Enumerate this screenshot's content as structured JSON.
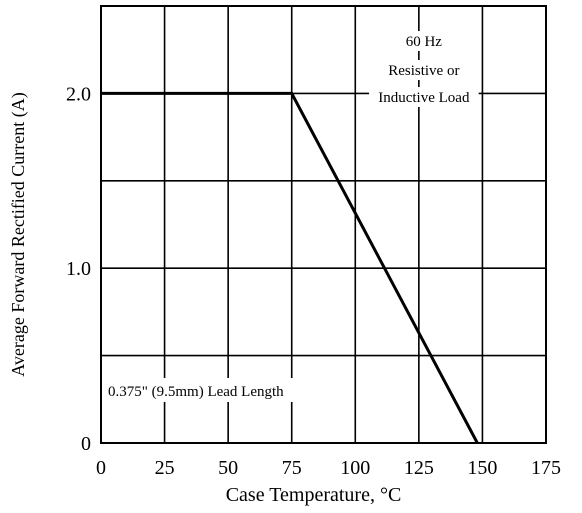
{
  "chart_data": {
    "type": "line",
    "title": "",
    "xlabel": "Case Temperature, °C",
    "ylabel": "Average Forward Rectified Current (A)",
    "xlim": [
      0,
      175
    ],
    "ylim": [
      0,
      2.5
    ],
    "x_ticks": [
      0,
      25,
      50,
      75,
      100,
      125,
      150,
      175
    ],
    "x_tick_labels": [
      "0",
      "25",
      "50",
      "75",
      "100",
      "125",
      "150",
      "175"
    ],
    "y_ticks": [
      0,
      1.0,
      2.0
    ],
    "y_tick_labels": [
      "0",
      "1.0",
      "2.0"
    ],
    "grid": true,
    "x_gridlines": [
      25,
      50,
      75,
      100,
      125,
      150
    ],
    "y_gridlines": [
      0.5,
      1.0,
      1.5,
      2.0
    ],
    "series": [
      {
        "x": [
          0,
          75,
          148
        ],
        "y": [
          2.0,
          2.0,
          0
        ]
      }
    ],
    "annotations": {
      "condition_lines": [
        "60 Hz",
        "Resistive or",
        "Inductive Load"
      ],
      "lead_length": "0.375\" (9.5mm) Lead Length"
    },
    "colors": {
      "line": "#000000",
      "grid": "#000000",
      "background": "#ffffff"
    }
  }
}
